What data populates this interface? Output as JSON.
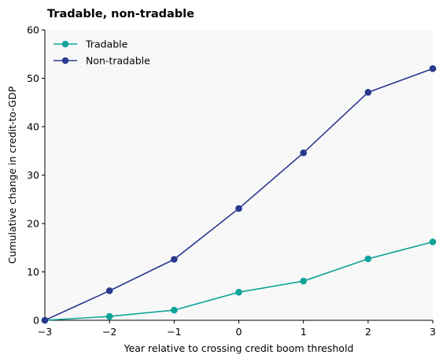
{
  "chart_data": {
    "type": "line",
    "title": "Tradable, non-tradable",
    "xlabel": "Year relative to crossing credit boom threshold",
    "ylabel": "Cumulative change in credit-to-GDP",
    "x": [
      -3,
      -2,
      -1,
      0,
      1,
      2,
      3
    ],
    "xlim": [
      -3,
      3
    ],
    "ylim": [
      0,
      60
    ],
    "xticks": [
      -3,
      -2,
      -1,
      0,
      1,
      2,
      3
    ],
    "xtick_labels": [
      "−3",
      "−2",
      "−1",
      "0",
      "1",
      "2",
      "3"
    ],
    "yticks": [
      0,
      10,
      20,
      30,
      40,
      50,
      60
    ],
    "ytick_labels": [
      "0",
      "10",
      "20",
      "30",
      "40",
      "50",
      "60"
    ],
    "grid": false,
    "legend_position": "top-left",
    "plot_background": "#f8f8f8",
    "series": [
      {
        "name": "Tradable",
        "color": "#0fa39a",
        "values": [
          0,
          0.8,
          2.1,
          5.8,
          8.1,
          12.7,
          16.2
        ]
      },
      {
        "name": "Non-tradable",
        "color": "#2b3990",
        "values": [
          0,
          6.1,
          12.6,
          23.1,
          34.6,
          47.1,
          52.0
        ]
      }
    ]
  }
}
